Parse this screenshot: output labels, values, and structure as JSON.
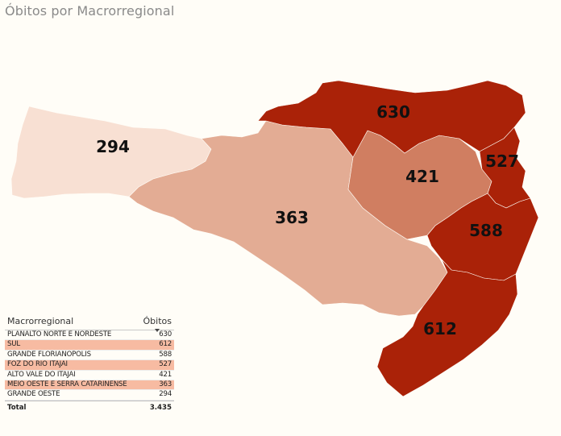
{
  "title": "Óbitos por Macrorregional",
  "colors": {
    "background": "#fffdf7",
    "scale_low": "#f8e0d3",
    "scale_mid_low": "#e3ac94",
    "scale_mid": "#d07e61",
    "scale_high": "#aa2208",
    "row_highlight": "#f7bba2"
  },
  "map": {
    "regions": [
      {
        "name": "PLANALTO NORTE E NORDESTE",
        "value": "630",
        "color": "#aa2208"
      },
      {
        "name": "SUL",
        "value": "612",
        "color": "#aa2208"
      },
      {
        "name": "GRANDE FLORIANOPOLIS",
        "value": "588",
        "color": "#aa2208"
      },
      {
        "name": "FOZ DO RIO ITAJAI",
        "value": "527",
        "color": "#aa2208"
      },
      {
        "name": "ALTO VALE DO ITAJAI",
        "value": "421",
        "color": "#d07e61"
      },
      {
        "name": "MEIO OESTE E SERRA CATARINENSE",
        "value": "363",
        "color": "#e3ac94"
      },
      {
        "name": "GRANDE OESTE",
        "value": "294",
        "color": "#f8e0d3"
      }
    ]
  },
  "table": {
    "col_region": "Macrorregional",
    "col_deaths": "Óbitos",
    "sort_icon": "sort-descending-icon",
    "rows": [
      {
        "name": "PLANALTO NORTE E NORDESTE",
        "value": "630",
        "highlight": false
      },
      {
        "name": "SUL",
        "value": "612",
        "highlight": true
      },
      {
        "name": "GRANDE FLORIANOPOLIS",
        "value": "588",
        "highlight": false
      },
      {
        "name": "FOZ DO RIO ITAJAI",
        "value": "527",
        "highlight": true
      },
      {
        "name": "ALTO VALE DO ITAJAI",
        "value": "421",
        "highlight": false
      },
      {
        "name": "MEIO OESTE E SERRA CATARINENSE",
        "value": "363",
        "highlight": true
      },
      {
        "name": "GRANDE OESTE",
        "value": "294",
        "highlight": false
      }
    ],
    "total_label": "Total",
    "total_value": "3.435"
  }
}
